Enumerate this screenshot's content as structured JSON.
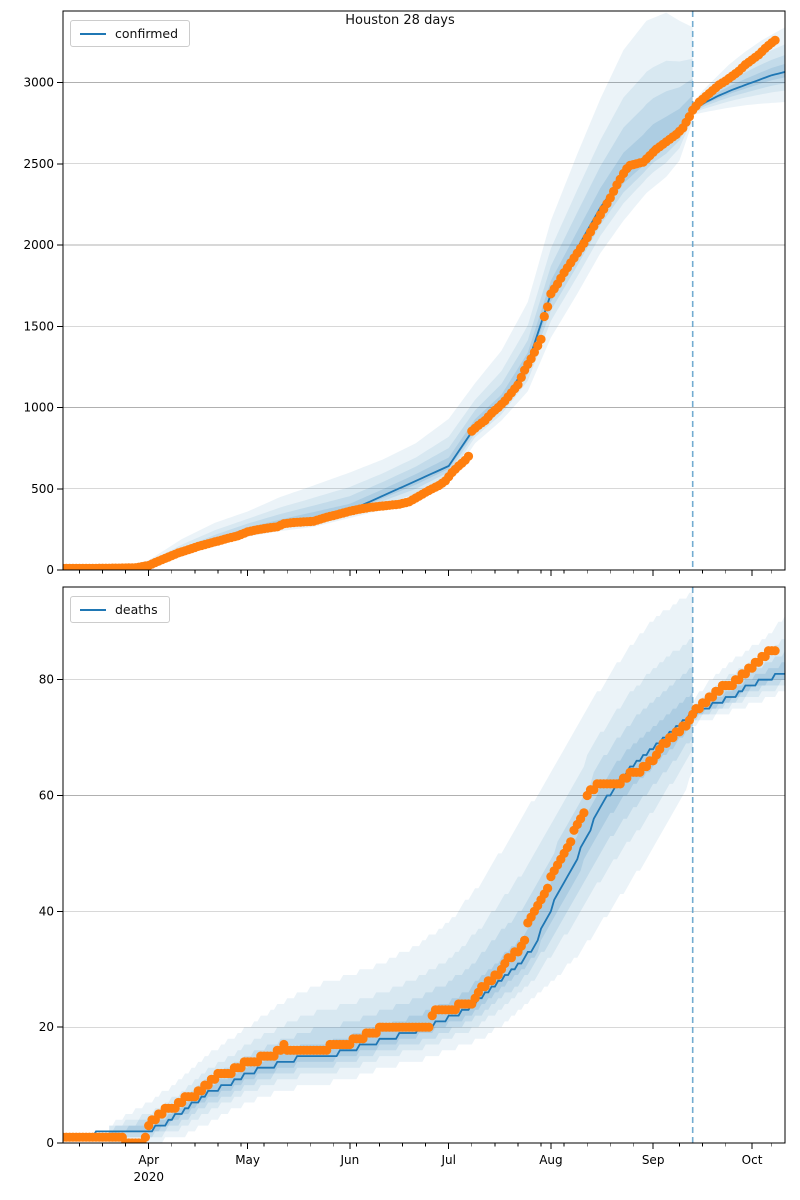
{
  "figure": {
    "title": "Houston 28 days"
  },
  "colors": {
    "observed": "#ff7f0e",
    "median": "#1f77b4",
    "band": "#1f77b4",
    "grid": "#b0b0b0",
    "frame": "#000000",
    "vline": "#5b9ec9",
    "text": "#000000",
    "legend_border": "#cccccc"
  },
  "x_axis": {
    "domain_days": [
      0,
      219
    ],
    "months": [
      {
        "label": "Apr",
        "day": 26
      },
      {
        "label": "May",
        "day": 56
      },
      {
        "label": "Jun",
        "day": 87
      },
      {
        "label": "Jul",
        "day": 117
      },
      {
        "label": "Aug",
        "day": 148
      },
      {
        "label": "Sep",
        "day": 179
      },
      {
        "label": "Oct",
        "day": 209
      }
    ],
    "year_label": "2020",
    "year_under_month": "Apr",
    "minor_tick_every_days": 7
  },
  "chart_data": [
    {
      "type": "line",
      "legend": "confirmed",
      "legend_position": "upper left",
      "grid": "horizontal",
      "ylim": [
        0,
        3440
      ],
      "yticks": [
        0,
        500,
        1000,
        1500,
        2000,
        2500,
        3000
      ],
      "stepped": false,
      "forecast_start_day": 191,
      "observed": {
        "d": [
          0,
          6,
          12,
          18,
          22,
          26,
          29,
          32,
          35,
          38,
          41,
          44,
          47,
          50,
          53,
          56,
          59,
          62,
          65,
          67,
          70,
          73,
          76,
          80,
          84,
          87,
          90,
          93,
          96,
          99,
          102,
          105,
          108,
          110,
          112,
          114,
          116,
          118,
          120,
          122,
          123,
          124,
          126,
          128,
          130,
          132,
          134,
          136,
          138,
          140,
          142,
          144,
          145,
          146,
          147,
          148,
          150,
          152,
          154,
          156,
          158,
          160,
          162,
          164,
          166,
          168,
          170,
          171,
          172,
          174,
          176,
          178,
          180,
          182,
          184,
          186,
          188,
          190,
          191,
          193,
          195,
          197,
          199,
          201,
          203,
          205,
          207,
          209,
          211,
          213,
          215,
          216
        ],
        "v": [
          10,
          10,
          11,
          12,
          14,
          28,
          55,
          80,
          105,
          125,
          145,
          162,
          178,
          195,
          210,
          235,
          248,
          258,
          266,
          285,
          292,
          296,
          300,
          325,
          345,
          362,
          375,
          385,
          392,
          398,
          405,
          420,
          455,
          478,
          500,
          520,
          548,
          600,
          640,
          675,
          700,
          855,
          890,
          920,
          965,
          1000,
          1040,
          1090,
          1140,
          1230,
          1300,
          1380,
          1420,
          1560,
          1620,
          1700,
          1760,
          1830,
          1890,
          1950,
          2010,
          2080,
          2150,
          2220,
          2290,
          2370,
          2440,
          2470,
          2490,
          2500,
          2510,
          2550,
          2590,
          2620,
          2650,
          2680,
          2720,
          2790,
          2830,
          2880,
          2915,
          2950,
          2985,
          3010,
          3040,
          3070,
          3110,
          3140,
          3170,
          3210,
          3245,
          3260
        ]
      },
      "median": {
        "d": [
          0,
          26,
          56,
          87,
          117,
          125,
          133,
          141,
          148,
          156,
          163,
          170,
          176,
          179,
          183,
          187,
          191,
          195,
          199,
          203,
          207,
          211,
          215,
          219
        ],
        "v": [
          8,
          30,
          240,
          365,
          640,
          880,
          1020,
          1270,
          1700,
          1980,
          2230,
          2430,
          2530,
          2600,
          2650,
          2720,
          2830,
          2880,
          2920,
          2955,
          2985,
          3015,
          3045,
          3065
        ]
      },
      "band_insample": {
        "d": [
          14,
          20,
          26,
          36,
          46,
          56,
          66,
          76,
          87,
          97,
          107,
          117,
          125,
          133,
          141,
          148,
          156,
          163,
          170,
          177,
          183,
          187,
          190,
          191
        ],
        "low": [
          5,
          8,
          15,
          90,
          150,
          205,
          240,
          265,
          320,
          370,
          420,
          540,
          780,
          920,
          1100,
          1430,
          1700,
          1950,
          2150,
          2320,
          2420,
          2520,
          2700,
          2760
        ],
        "high": [
          15,
          30,
          60,
          190,
          290,
          360,
          450,
          520,
          600,
          680,
          780,
          930,
          1150,
          1350,
          1650,
          2150,
          2560,
          2900,
          3200,
          3380,
          3430,
          3380,
          3350,
          3340
        ]
      },
      "band_forecast": {
        "d": [
          191,
          194,
          198,
          202,
          207,
          212,
          219
        ],
        "low": [
          2800,
          2815,
          2830,
          2845,
          2860,
          2870,
          2880
        ],
        "high": [
          2870,
          2950,
          3030,
          3110,
          3190,
          3260,
          3340
        ]
      }
    },
    {
      "type": "line",
      "legend": "deaths",
      "legend_position": "upper left",
      "grid": "horizontal",
      "ylim": [
        0,
        96
      ],
      "yticks": [
        0,
        20,
        40,
        60,
        80
      ],
      "stepped": true,
      "forecast_start_day": 191,
      "observed": {
        "d": [
          0,
          10,
          18,
          19,
          24,
          25,
          26,
          28,
          30,
          32,
          34,
          36,
          38,
          40,
          42,
          44,
          46,
          48,
          50,
          53,
          56,
          58,
          61,
          64,
          66,
          67,
          68,
          69,
          72,
          76,
          80,
          82,
          85,
          87,
          89,
          91,
          93,
          95,
          97,
          100,
          104,
          108,
          111,
          112,
          114,
          117,
          119,
          121,
          124,
          126,
          128,
          130,
          132,
          134,
          136,
          138,
          140,
          141,
          143,
          145,
          147,
          148,
          150,
          152,
          154,
          156,
          158,
          159,
          161,
          163,
          166,
          169,
          171,
          173,
          175,
          177,
          179,
          181,
          183,
          185,
          187,
          189,
          190,
          191,
          193,
          195,
          197,
          199,
          201,
          203,
          205,
          207,
          209,
          211,
          213,
          215,
          216
        ],
        "v": [
          1,
          1,
          1,
          0,
          0,
          1,
          3,
          4,
          5,
          6,
          6,
          7,
          8,
          8,
          9,
          10,
          11,
          12,
          12,
          13,
          14,
          14,
          15,
          15,
          16,
          17,
          16,
          16,
          16,
          16,
          16,
          17,
          17,
          17,
          18,
          18,
          19,
          19,
          20,
          20,
          20,
          20,
          20,
          22,
          23,
          23,
          23,
          24,
          24,
          26,
          27,
          28,
          29,
          31,
          32,
          33,
          35,
          38,
          40,
          42,
          44,
          46,
          48,
          50,
          52,
          55,
          57,
          60,
          61,
          62,
          62,
          62,
          63,
          64,
          64,
          65,
          66,
          68,
          69,
          70,
          71,
          72,
          73,
          74,
          75,
          76,
          77,
          78,
          79,
          79,
          80,
          81,
          82,
          83,
          84,
          85,
          85
        ]
      },
      "median": {
        "d": [
          0,
          20,
          26,
          30,
          35,
          40,
          45,
          50,
          56,
          62,
          68,
          74,
          80,
          87,
          93,
          99,
          105,
          111,
          115,
          119,
          123,
          127,
          131,
          135,
          139,
          143,
          147,
          151,
          155,
          159,
          163,
          167,
          171,
          175,
          179,
          183,
          187,
          191,
          195,
          199,
          203,
          208,
          213,
          219
        ],
        "v": [
          1,
          2,
          2,
          3,
          5,
          7,
          9,
          10,
          12,
          13,
          14,
          15,
          15,
          16,
          17,
          18,
          19,
          20,
          21,
          22,
          23,
          25,
          27,
          29,
          31,
          34,
          39,
          44,
          48,
          53,
          58,
          61,
          64,
          66,
          68,
          70,
          72,
          74,
          75,
          76,
          77,
          79,
          80,
          81
        ]
      },
      "band_insample": {
        "d": [
          14,
          20,
          26,
          36,
          46,
          56,
          66,
          76,
          87,
          97,
          107,
          117,
          127,
          137,
          147,
          157,
          167,
          177,
          183,
          188,
          191
        ],
        "low": [
          0,
          0,
          0,
          1,
          4,
          7,
          9,
          10,
          11,
          13,
          14,
          16,
          18,
          22,
          27,
          33,
          41,
          49,
          55,
          60,
          64
        ],
        "high": [
          3,
          5,
          7,
          11,
          16,
          20,
          24,
          27,
          29,
          31,
          34,
          38,
          45,
          54,
          63,
          73,
          82,
          89,
          92,
          94,
          95
        ]
      },
      "band_forecast": {
        "d": [
          191,
          195,
          200,
          205,
          210,
          215,
          219
        ],
        "low": [
          72,
          73,
          74,
          75,
          76,
          77,
          78
        ],
        "high": [
          76,
          79,
          82,
          84,
          86,
          88,
          91
        ]
      }
    }
  ]
}
